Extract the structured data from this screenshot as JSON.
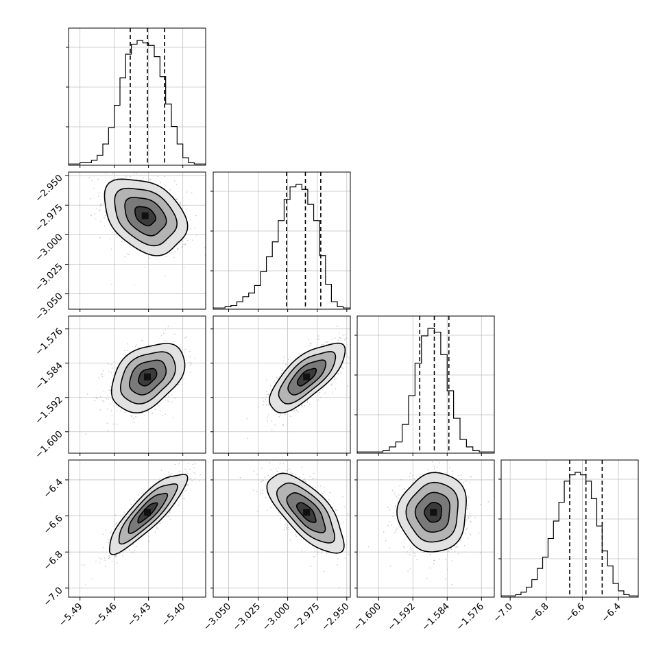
{
  "chart_data": {
    "type": "corner",
    "title": "",
    "parameters": [
      {
        "label": "",
        "ticks": [
          -5.49,
          -5.46,
          -5.43,
          -5.4
        ],
        "tick_labels": [
          "−5.49",
          "−5.46",
          "−5.43",
          "−5.40"
        ],
        "range": [
          -5.5,
          -5.38
        ],
        "quantiles": [
          -5.446,
          -5.431,
          -5.416
        ]
      },
      {
        "label": "",
        "ticks": [
          -3.05,
          -3.025,
          -3.0,
          -2.975,
          -2.95
        ],
        "tick_labels": [
          "−3.050",
          "−3.025",
          "−3.000",
          "−2.975",
          "−2.950"
        ],
        "range": [
          -3.063,
          -2.947
        ],
        "quantiles": [
          -3.001,
          -2.985,
          -2.972
        ]
      },
      {
        "label": "",
        "ticks": [
          -1.6,
          -1.592,
          -1.584,
          -1.576
        ],
        "tick_labels": [
          "−1.600",
          "−1.592",
          "−1.584",
          "−1.576"
        ],
        "range": [
          -1.605,
          -1.573
        ],
        "quantiles": [
          -1.5904,
          -1.587,
          -1.5836
        ]
      },
      {
        "label": "",
        "ticks": [
          -7.0,
          -6.8,
          -6.6,
          -6.4
        ],
        "tick_labels": [
          "−7.0",
          "−6.8",
          "−6.6",
          "−6.4"
        ],
        "range": [
          -7.05,
          -6.29
        ],
        "quantiles": [
          -6.67,
          -6.58,
          -6.49
        ]
      }
    ],
    "histograms": [
      {
        "param": 0,
        "bin_edges": [
          -5.5,
          -5.49,
          -5.48,
          -5.475,
          -5.47,
          -5.465,
          -5.46,
          -5.455,
          -5.45,
          -5.445,
          -5.44,
          -5.435,
          -5.43,
          -5.425,
          -5.42,
          -5.415,
          -5.41,
          -5.405,
          -5.4,
          -5.395,
          -5.39,
          -5.38
        ],
        "counts": [
          0.01,
          0.02,
          0.04,
          0.08,
          0.17,
          0.3,
          0.48,
          0.7,
          0.89,
          0.97,
          1.0,
          0.98,
          0.96,
          0.87,
          0.71,
          0.49,
          0.31,
          0.17,
          0.06,
          0.02,
          0.01
        ]
      },
      {
        "param": 1,
        "bin_edges": [
          -3.063,
          -3.053,
          -3.048,
          -3.043,
          -3.038,
          -3.033,
          -3.028,
          -3.023,
          -3.018,
          -3.013,
          -3.008,
          -3.003,
          -2.998,
          -2.993,
          -2.988,
          -2.983,
          -2.978,
          -2.973,
          -2.968,
          -2.963,
          -2.958,
          -2.953,
          -2.947
        ],
        "counts": [
          0.01,
          0.02,
          0.03,
          0.06,
          0.1,
          0.13,
          0.19,
          0.3,
          0.42,
          0.54,
          0.71,
          0.88,
          0.98,
          1.0,
          0.96,
          0.84,
          0.71,
          0.43,
          0.2,
          0.06,
          0.02,
          0.01
        ]
      },
      {
        "param": 2,
        "bin_edges": [
          -1.605,
          -1.599,
          -1.5975,
          -1.596,
          -1.5945,
          -1.593,
          -1.5915,
          -1.59,
          -1.5885,
          -1.587,
          -1.5855,
          -1.584,
          -1.5825,
          -1.581,
          -1.5795,
          -1.578,
          -1.5765,
          -1.575,
          -1.573
        ],
        "counts": [
          0.01,
          0.02,
          0.05,
          0.09,
          0.23,
          0.46,
          0.72,
          0.94,
          1.0,
          0.97,
          0.79,
          0.5,
          0.28,
          0.11,
          0.05,
          0.02,
          0.01,
          0.01
        ]
      },
      {
        "param": 3,
        "bin_edges": [
          -7.05,
          -6.97,
          -6.94,
          -6.91,
          -6.88,
          -6.85,
          -6.82,
          -6.79,
          -6.76,
          -6.73,
          -6.7,
          -6.67,
          -6.64,
          -6.61,
          -6.58,
          -6.55,
          -6.52,
          -6.49,
          -6.46,
          -6.43,
          -6.4,
          -6.37,
          -6.34,
          -6.29
        ],
        "counts": [
          0.01,
          0.02,
          0.04,
          0.08,
          0.14,
          0.23,
          0.32,
          0.47,
          0.61,
          0.76,
          0.93,
          0.98,
          1.0,
          0.98,
          0.93,
          0.79,
          0.57,
          0.37,
          0.25,
          0.11,
          0.05,
          0.02,
          0.01
        ]
      }
    ],
    "joint": [
      {
        "x": 0,
        "y": 1,
        "mean": [
          -5.433,
          -2.984
        ],
        "sigma": [
          0.018,
          0.016
        ],
        "rho": -0.33
      },
      {
        "x": 0,
        "y": 2,
        "mean": [
          -5.431,
          -1.5872
        ],
        "sigma": [
          0.016,
          0.004
        ],
        "rho": 0.38
      },
      {
        "x": 1,
        "y": 2,
        "mean": [
          -2.984,
          -1.5872
        ],
        "sigma": [
          0.016,
          0.004
        ],
        "rho": 0.72
      },
      {
        "x": 0,
        "y": 3,
        "mean": [
          -5.431,
          -6.58
        ],
        "sigma": [
          0.017,
          0.11
        ],
        "rho": 0.86
      },
      {
        "x": 1,
        "y": 3,
        "mean": [
          -2.984,
          -6.58
        ],
        "sigma": [
          0.016,
          0.11
        ],
        "rho": -0.7
      },
      {
        "x": 2,
        "y": 3,
        "mean": [
          -1.5872,
          -6.58
        ],
        "sigma": [
          0.004,
          0.11
        ],
        "rho": 0.05
      }
    ],
    "contour_levels_sigma": [
      0.5,
      1.0,
      1.5,
      2.0
    ],
    "quantiles": [
      0.16,
      0.5,
      0.84
    ],
    "grid": true,
    "colors": {
      "axis": "#000000",
      "grid": "#c0c0c0",
      "points": "#9a9a9a",
      "density_max": "#101010"
    }
  }
}
